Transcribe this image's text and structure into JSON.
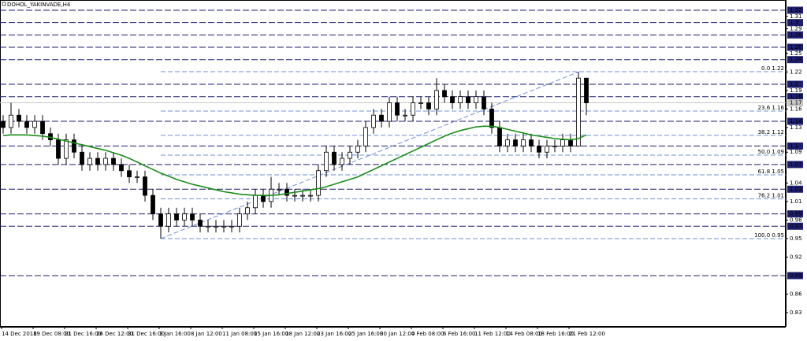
{
  "chart_data": {
    "type": "candlestick",
    "title": "DOHOL_YAKINVADE,H4",
    "categories": [
      "14 Dec 2018",
      null,
      null,
      null,
      "19 Dec 08:00",
      null,
      null,
      null,
      "21 Dec 16:00",
      null,
      null,
      null,
      "26 Dec 12:00",
      null,
      null,
      null,
      "31 Dec 16:00",
      null,
      null,
      null,
      "3 Jan 16:00",
      null,
      null,
      null,
      "8 Jan 12:00",
      null,
      null,
      null,
      "11 Jan 08:00",
      null,
      null,
      null,
      "15 Jan 16:00",
      null,
      null,
      null,
      "18 Jan 12:00",
      null,
      null,
      null,
      "23 Jan 16:00",
      null,
      null,
      null,
      "25 Jan 16:00",
      null,
      null,
      null,
      "30 Jan 12:00",
      null,
      null,
      null,
      "4 Feb 08:00",
      null,
      null,
      null,
      "6 Feb 16:00",
      null,
      null,
      null,
      "11 Feb 12:00",
      null,
      null,
      null,
      "14 Feb 08:00",
      null,
      null,
      null,
      "18 Feb 16:00",
      null,
      null,
      null,
      "21 Feb 12:00",
      null,
      null
    ],
    "open": [
      1.14,
      1.13,
      1.15,
      1.14,
      1.13,
      1.14,
      1.12,
      1.11,
      1.08,
      1.11,
      1.09,
      1.07,
      1.08,
      1.07,
      1.08,
      1.07,
      1.06,
      1.05,
      1.05,
      1.02,
      0.99,
      0.97,
      0.99,
      0.98,
      0.99,
      0.98,
      0.97,
      0.97,
      0.97,
      0.97,
      0.97,
      0.99,
      1.0,
      1.02,
      1.01,
      1.03,
      1.03,
      1.02,
      1.02,
      1.02,
      1.02,
      1.06,
      1.09,
      1.07,
      1.08,
      1.09,
      1.1,
      1.13,
      1.15,
      1.14,
      1.17,
      1.15,
      1.15,
      1.17,
      1.17,
      1.16,
      1.19,
      1.18,
      1.17,
      1.18,
      1.17,
      1.18,
      1.16,
      1.13,
      1.1,
      1.11,
      1.1,
      1.11,
      1.1,
      1.09,
      1.1,
      1.1,
      1.11,
      1.1,
      1.21
    ],
    "high": [
      1.15,
      1.17,
      1.16,
      1.15,
      1.15,
      1.15,
      1.13,
      1.12,
      1.12,
      1.12,
      1.1,
      1.09,
      1.09,
      1.09,
      1.09,
      1.08,
      1.07,
      1.06,
      1.06,
      1.03,
      1.0,
      1.0,
      1.0,
      1.0,
      1.0,
      0.99,
      0.98,
      0.98,
      0.98,
      0.98,
      1.0,
      1.01,
      1.03,
      1.03,
      1.05,
      1.04,
      1.04,
      1.03,
      1.03,
      1.03,
      1.07,
      1.1,
      1.1,
      1.09,
      1.1,
      1.11,
      1.14,
      1.16,
      1.16,
      1.18,
      1.18,
      1.16,
      1.18,
      1.18,
      1.18,
      1.21,
      1.2,
      1.19,
      1.19,
      1.19,
      1.19,
      1.19,
      1.17,
      1.14,
      1.12,
      1.12,
      1.12,
      1.12,
      1.11,
      1.11,
      1.11,
      1.12,
      1.12,
      1.22,
      1.21
    ],
    "low": [
      1.12,
      1.12,
      1.13,
      1.12,
      1.12,
      1.11,
      1.1,
      1.07,
      1.07,
      1.08,
      1.06,
      1.06,
      1.06,
      1.06,
      1.06,
      1.05,
      1.04,
      1.04,
      1.01,
      0.98,
      0.95,
      0.96,
      0.97,
      0.97,
      0.97,
      0.96,
      0.96,
      0.96,
      0.96,
      0.96,
      0.96,
      0.98,
      0.99,
      1.0,
      1.0,
      1.02,
      1.01,
      1.01,
      1.01,
      1.01,
      1.01,
      1.05,
      1.06,
      1.06,
      1.07,
      1.08,
      1.09,
      1.12,
      1.13,
      1.13,
      1.14,
      1.14,
      1.14,
      1.16,
      1.15,
      1.15,
      1.17,
      1.16,
      1.16,
      1.16,
      1.16,
      1.15,
      1.12,
      1.09,
      1.09,
      1.09,
      1.09,
      1.09,
      1.08,
      1.08,
      1.09,
      1.09,
      1.09,
      1.1,
      1.15
    ],
    "close": [
      1.13,
      1.15,
      1.14,
      1.13,
      1.14,
      1.12,
      1.11,
      1.08,
      1.11,
      1.09,
      1.07,
      1.08,
      1.07,
      1.08,
      1.07,
      1.06,
      1.05,
      1.05,
      1.02,
      0.99,
      0.97,
      0.99,
      0.98,
      0.99,
      0.98,
      0.97,
      0.97,
      0.97,
      0.97,
      0.97,
      0.99,
      1.0,
      1.02,
      1.01,
      1.03,
      1.03,
      1.02,
      1.02,
      1.02,
      1.02,
      1.06,
      1.09,
      1.07,
      1.08,
      1.09,
      1.1,
      1.13,
      1.15,
      1.14,
      1.17,
      1.15,
      1.15,
      1.17,
      1.17,
      1.16,
      1.19,
      1.18,
      1.17,
      1.18,
      1.17,
      1.18,
      1.16,
      1.13,
      1.1,
      1.11,
      1.1,
      1.11,
      1.1,
      1.09,
      1.1,
      1.1,
      1.11,
      1.1,
      1.21,
      1.17
    ],
    "ma": {
      "color": "#1a8c1a",
      "values": [
        1.117,
        1.118,
        1.118,
        1.118,
        1.117,
        1.116,
        1.114,
        1.111,
        1.108,
        1.105,
        1.102,
        1.099,
        1.096,
        1.093,
        1.089,
        1.085,
        1.08,
        1.074,
        1.068,
        1.062,
        1.056,
        1.051,
        1.046,
        1.042,
        1.038,
        1.035,
        1.032,
        1.029,
        1.026,
        1.024,
        1.022,
        1.021,
        1.02,
        1.02,
        1.02,
        1.021,
        1.023,
        1.025,
        1.027,
        1.029,
        1.031,
        1.034,
        1.038,
        1.042,
        1.046,
        1.05,
        1.056,
        1.062,
        1.068,
        1.074,
        1.08,
        1.086,
        1.092,
        1.098,
        1.104,
        1.11,
        1.116,
        1.121,
        1.125,
        1.128,
        1.131,
        1.132,
        1.132,
        1.13,
        1.127,
        1.124,
        1.121,
        1.118,
        1.116,
        1.114,
        1.112,
        1.111,
        1.11,
        1.112,
        1.118
      ]
    },
    "ylim": [
      0.807,
      1.3366
    ],
    "yticks": [
      1.31,
      1.29,
      1.25,
      1.22,
      1.19,
      1.16,
      1.13,
      1.09,
      1.04,
      1.01,
      0.98,
      0.95,
      0.92,
      0.86,
      0.83
    ],
    "levels": {
      "color": "#1e1e6e",
      "values": [
        1.32,
        1.3,
        1.28,
        1.26,
        1.24,
        1.2,
        1.18,
        1.14,
        1.1,
        1.07,
        1.03,
        0.99,
        0.97,
        0.89
      ]
    },
    "bid": 1.17,
    "fibonacci": {
      "color": "#6f8fd9",
      "levels": [
        {
          "value": 1.2205,
          "label": "0.0 1.22"
        },
        {
          "value": 1.1567,
          "label": "23.6 1.16"
        },
        {
          "value": 1.1172,
          "label": "38.2 1.12"
        },
        {
          "value": 1.08525,
          "label": "50.0 1.09"
        },
        {
          "value": 1.0533,
          "label": "61.8 1.05"
        },
        {
          "value": 1.0144,
          "label": "76.2 1.01"
        },
        {
          "value": 0.95,
          "label": "100.0 0.95"
        }
      ]
    }
  }
}
